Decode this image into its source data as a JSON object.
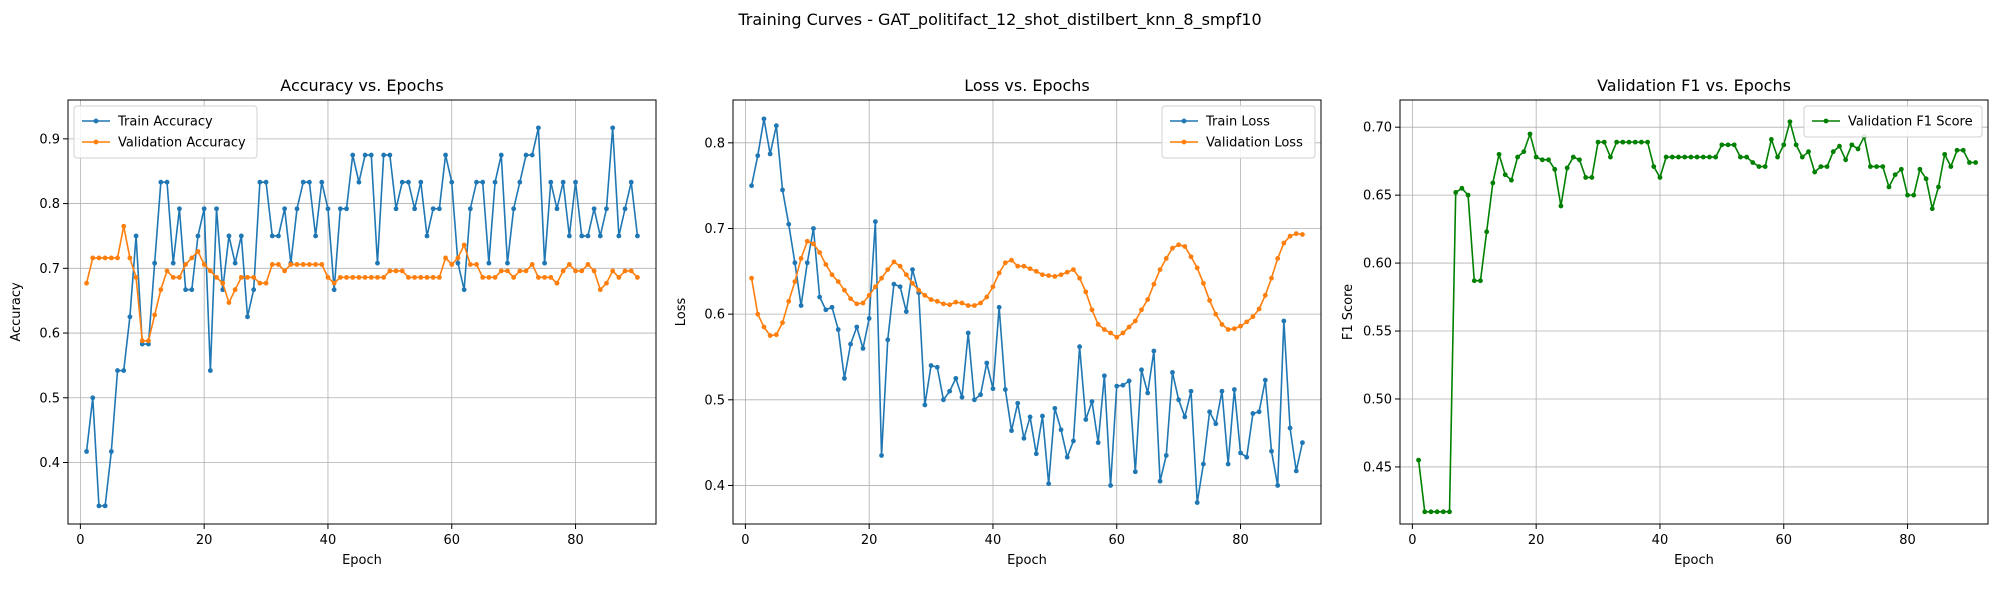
{
  "figure_title": "Training Curves - GAT_politifact_12_shot_distilbert_knn_8_smpf10",
  "chart_data": [
    {
      "type": "line",
      "title": "Accuracy vs. Epochs",
      "xlabel": "Epoch",
      "ylabel": "Accuracy",
      "xlim": [
        -2,
        93
      ],
      "ylim": [
        0.305,
        0.96
      ],
      "xticks": [
        0,
        20,
        40,
        60,
        80
      ],
      "yticks": [
        0.4,
        0.5,
        0.6,
        0.7,
        0.8,
        0.9
      ],
      "ytick_labels": [
        "0.4",
        "0.5",
        "0.6",
        "0.7",
        "0.8",
        "0.9"
      ],
      "grid": true,
      "legend_position": "upper-left",
      "x_start": 1,
      "series": [
        {
          "name": "Train Accuracy",
          "color": "#1f77b4",
          "values": [
            0.417,
            0.5,
            0.333,
            0.333,
            0.417,
            0.542,
            0.542,
            0.625,
            0.75,
            0.583,
            0.583,
            0.708,
            0.833,
            0.833,
            0.708,
            0.792,
            0.667,
            0.667,
            0.75,
            0.792,
            0.542,
            0.792,
            0.667,
            0.75,
            0.708,
            0.75,
            0.625,
            0.667,
            0.833,
            0.833,
            0.75,
            0.75,
            0.792,
            0.708,
            0.792,
            0.833,
            0.833,
            0.75,
            0.833,
            0.792,
            0.667,
            0.792,
            0.792,
            0.875,
            0.833,
            0.875,
            0.875,
            0.708,
            0.875,
            0.875,
            0.792,
            0.833,
            0.833,
            0.792,
            0.833,
            0.75,
            0.792,
            0.792,
            0.875,
            0.833,
            0.708,
            0.667,
            0.792,
            0.833,
            0.833,
            0.708,
            0.833,
            0.875,
            0.708,
            0.792,
            0.833,
            0.875,
            0.875,
            0.917,
            0.708,
            0.833,
            0.792,
            0.833,
            0.75,
            0.833,
            0.75,
            0.75,
            0.792,
            0.75,
            0.792,
            0.917,
            0.75,
            0.792,
            0.833,
            0.75
          ]
        },
        {
          "name": "Validation Accuracy",
          "color": "#ff7f0e",
          "values": [
            0.677,
            0.716,
            0.716,
            0.716,
            0.716,
            0.716,
            0.765,
            0.716,
            0.686,
            0.588,
            0.588,
            0.628,
            0.667,
            0.696,
            0.686,
            0.686,
            0.706,
            0.716,
            0.726,
            0.706,
            0.696,
            0.686,
            0.677,
            0.647,
            0.667,
            0.686,
            0.686,
            0.686,
            0.677,
            0.677,
            0.706,
            0.706,
            0.696,
            0.706,
            0.706,
            0.706,
            0.706,
            0.706,
            0.706,
            0.686,
            0.677,
            0.686,
            0.686,
            0.686,
            0.686,
            0.686,
            0.686,
            0.686,
            0.686,
            0.696,
            0.696,
            0.696,
            0.686,
            0.686,
            0.686,
            0.686,
            0.686,
            0.686,
            0.716,
            0.706,
            0.716,
            0.736,
            0.706,
            0.706,
            0.686,
            0.686,
            0.686,
            0.696,
            0.696,
            0.686,
            0.696,
            0.696,
            0.706,
            0.686,
            0.686,
            0.686,
            0.677,
            0.696,
            0.706,
            0.696,
            0.696,
            0.706,
            0.696,
            0.667,
            0.677,
            0.696,
            0.686,
            0.696,
            0.696,
            0.686
          ]
        }
      ]
    },
    {
      "type": "line",
      "title": "Loss vs. Epochs",
      "xlabel": "Epoch",
      "ylabel": "Loss",
      "xlim": [
        -2,
        93
      ],
      "ylim": [
        0.355,
        0.85
      ],
      "xticks": [
        0,
        20,
        40,
        60,
        80
      ],
      "yticks": [
        0.4,
        0.5,
        0.6,
        0.7,
        0.8
      ],
      "ytick_labels": [
        "0.4",
        "0.5",
        "0.6",
        "0.7",
        "0.8"
      ],
      "grid": true,
      "legend_position": "upper-right",
      "x_start": 1,
      "series": [
        {
          "name": "Train Loss",
          "color": "#1f77b4",
          "values": [
            0.75,
            0.785,
            0.828,
            0.787,
            0.82,
            0.745,
            0.705,
            0.66,
            0.61,
            0.66,
            0.7,
            0.62,
            0.605,
            0.608,
            0.582,
            0.525,
            0.565,
            0.585,
            0.56,
            0.595,
            0.708,
            0.435,
            0.57,
            0.635,
            0.632,
            0.603,
            0.652,
            0.625,
            0.494,
            0.54,
            0.538,
            0.5,
            0.51,
            0.525,
            0.503,
            0.578,
            0.5,
            0.506,
            0.543,
            0.513,
            0.608,
            0.512,
            0.464,
            0.496,
            0.455,
            0.48,
            0.437,
            0.481,
            0.402,
            0.49,
            0.465,
            0.433,
            0.452,
            0.562,
            0.477,
            0.498,
            0.45,
            0.528,
            0.4,
            0.516,
            0.517,
            0.522,
            0.416,
            0.535,
            0.508,
            0.557,
            0.405,
            0.435,
            0.532,
            0.5,
            0.48,
            0.51,
            0.38,
            0.425,
            0.486,
            0.472,
            0.51,
            0.425,
            0.512,
            0.438,
            0.433,
            0.484,
            0.486,
            0.523,
            0.44,
            0.4,
            0.592,
            0.467,
            0.417,
            0.45
          ]
        },
        {
          "name": "Validation Loss",
          "color": "#ff7f0e",
          "values": [
            0.642,
            0.6,
            0.585,
            0.575,
            0.576,
            0.59,
            0.615,
            0.638,
            0.665,
            0.685,
            0.682,
            0.672,
            0.658,
            0.646,
            0.638,
            0.628,
            0.618,
            0.612,
            0.613,
            0.622,
            0.632,
            0.642,
            0.652,
            0.661,
            0.656,
            0.646,
            0.636,
            0.628,
            0.622,
            0.617,
            0.615,
            0.612,
            0.611,
            0.614,
            0.613,
            0.61,
            0.61,
            0.613,
            0.62,
            0.632,
            0.648,
            0.66,
            0.663,
            0.656,
            0.656,
            0.653,
            0.65,
            0.646,
            0.645,
            0.644,
            0.646,
            0.649,
            0.652,
            0.642,
            0.626,
            0.605,
            0.588,
            0.582,
            0.578,
            0.573,
            0.578,
            0.585,
            0.592,
            0.605,
            0.617,
            0.635,
            0.652,
            0.665,
            0.677,
            0.681,
            0.679,
            0.667,
            0.654,
            0.636,
            0.616,
            0.6,
            0.588,
            0.582,
            0.583,
            0.586,
            0.591,
            0.597,
            0.606,
            0.622,
            0.642,
            0.665,
            0.683,
            0.691,
            0.694,
            0.693
          ]
        }
      ]
    },
    {
      "type": "line",
      "title": "Validation F1 vs. Epochs",
      "xlabel": "Epoch",
      "ylabel": "F1 Score",
      "xlim": [
        -2,
        93
      ],
      "ylim": [
        0.408,
        0.72
      ],
      "xticks": [
        0,
        20,
        40,
        60,
        80
      ],
      "yticks": [
        0.45,
        0.5,
        0.55,
        0.6,
        0.65,
        0.7
      ],
      "ytick_labels": [
        "0.45",
        "0.50",
        "0.55",
        "0.60",
        "0.65",
        "0.70"
      ],
      "grid": true,
      "legend_position": "upper-right",
      "x_start": 1,
      "series": [
        {
          "name": "Validation F1 Score",
          "color": "#008000",
          "values": [
            0.455,
            0.417,
            0.417,
            0.417,
            0.417,
            0.417,
            0.652,
            0.655,
            0.65,
            0.587,
            0.587,
            0.623,
            0.659,
            0.68,
            0.665,
            0.661,
            0.678,
            0.682,
            0.695,
            0.678,
            0.676,
            0.676,
            0.669,
            0.642,
            0.67,
            0.678,
            0.676,
            0.663,
            0.663,
            0.689,
            0.689,
            0.678,
            0.689,
            0.689,
            0.689,
            0.689,
            0.689,
            0.689,
            0.671,
            0.663,
            0.678,
            0.678,
            0.678,
            0.678,
            0.678,
            0.678,
            0.678,
            0.678,
            0.678,
            0.687,
            0.687,
            0.687,
            0.678,
            0.678,
            0.674,
            0.671,
            0.671,
            0.691,
            0.678,
            0.687,
            0.704,
            0.687,
            0.678,
            0.682,
            0.667,
            0.671,
            0.671,
            0.682,
            0.686,
            0.676,
            0.687,
            0.684,
            0.693,
            0.671,
            0.671,
            0.671,
            0.656,
            0.665,
            0.669,
            0.65,
            0.65,
            0.669,
            0.662,
            0.64,
            0.656,
            0.68,
            0.671,
            0.683,
            0.683,
            0.674,
            0.674
          ]
        }
      ]
    }
  ]
}
